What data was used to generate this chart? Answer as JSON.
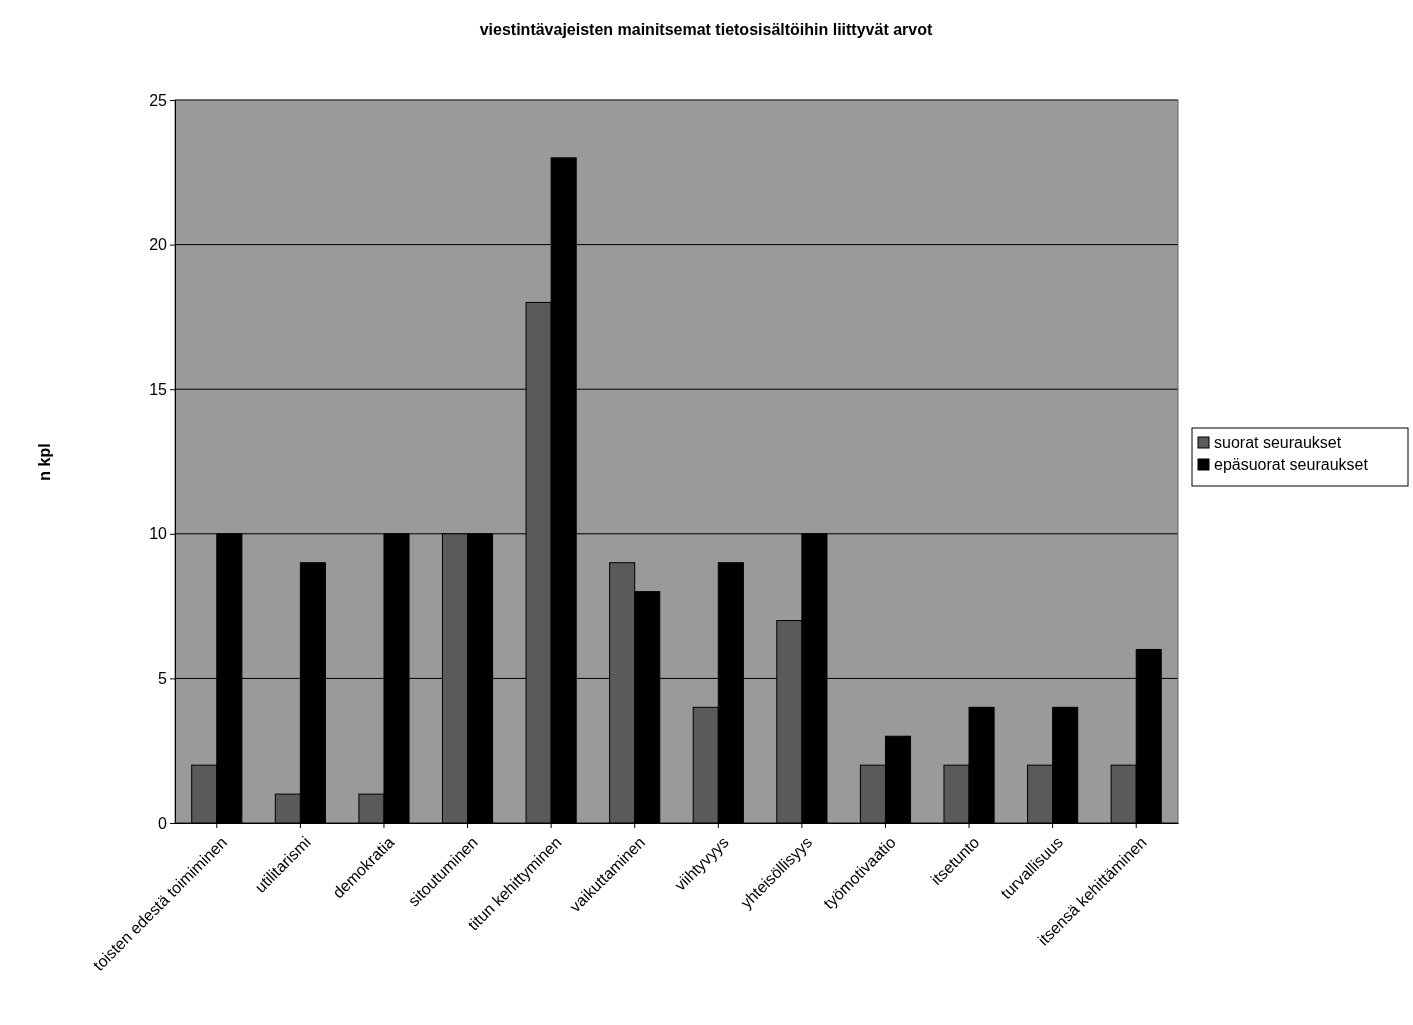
{
  "chart_data": {
    "type": "bar",
    "title": "viestintävajeisten mainitsemat tietosisältöihin liittyvät arvot",
    "ylabel": "n kpl",
    "categories": [
      "toisten edestä toimiminen",
      "utilitarismi",
      "demokratia",
      "sitoutuminen",
      "titun kehittyminen",
      "vaikuttaminen",
      "viihtyvyys",
      "yhteisöllisyys",
      "työmotivaatio",
      "itsetunto",
      "turvallisuus",
      "itsensä kehittäminen"
    ],
    "series": [
      {
        "name": "suorat seuraukset",
        "color": "#5a5a5a",
        "values": [
          2,
          1,
          1,
          10,
          18,
          9,
          4,
          7,
          2,
          2,
          2,
          2
        ]
      },
      {
        "name": "epäsuorat seuraukset",
        "color": "#000000",
        "values": [
          10,
          9,
          10,
          10,
          23,
          8,
          9,
          10,
          3,
          4,
          4,
          6
        ]
      }
    ],
    "ylim": [
      0,
      25
    ],
    "yticks": [
      0,
      5,
      10,
      15,
      20,
      25
    ],
    "grid": "y",
    "legend": "right"
  }
}
